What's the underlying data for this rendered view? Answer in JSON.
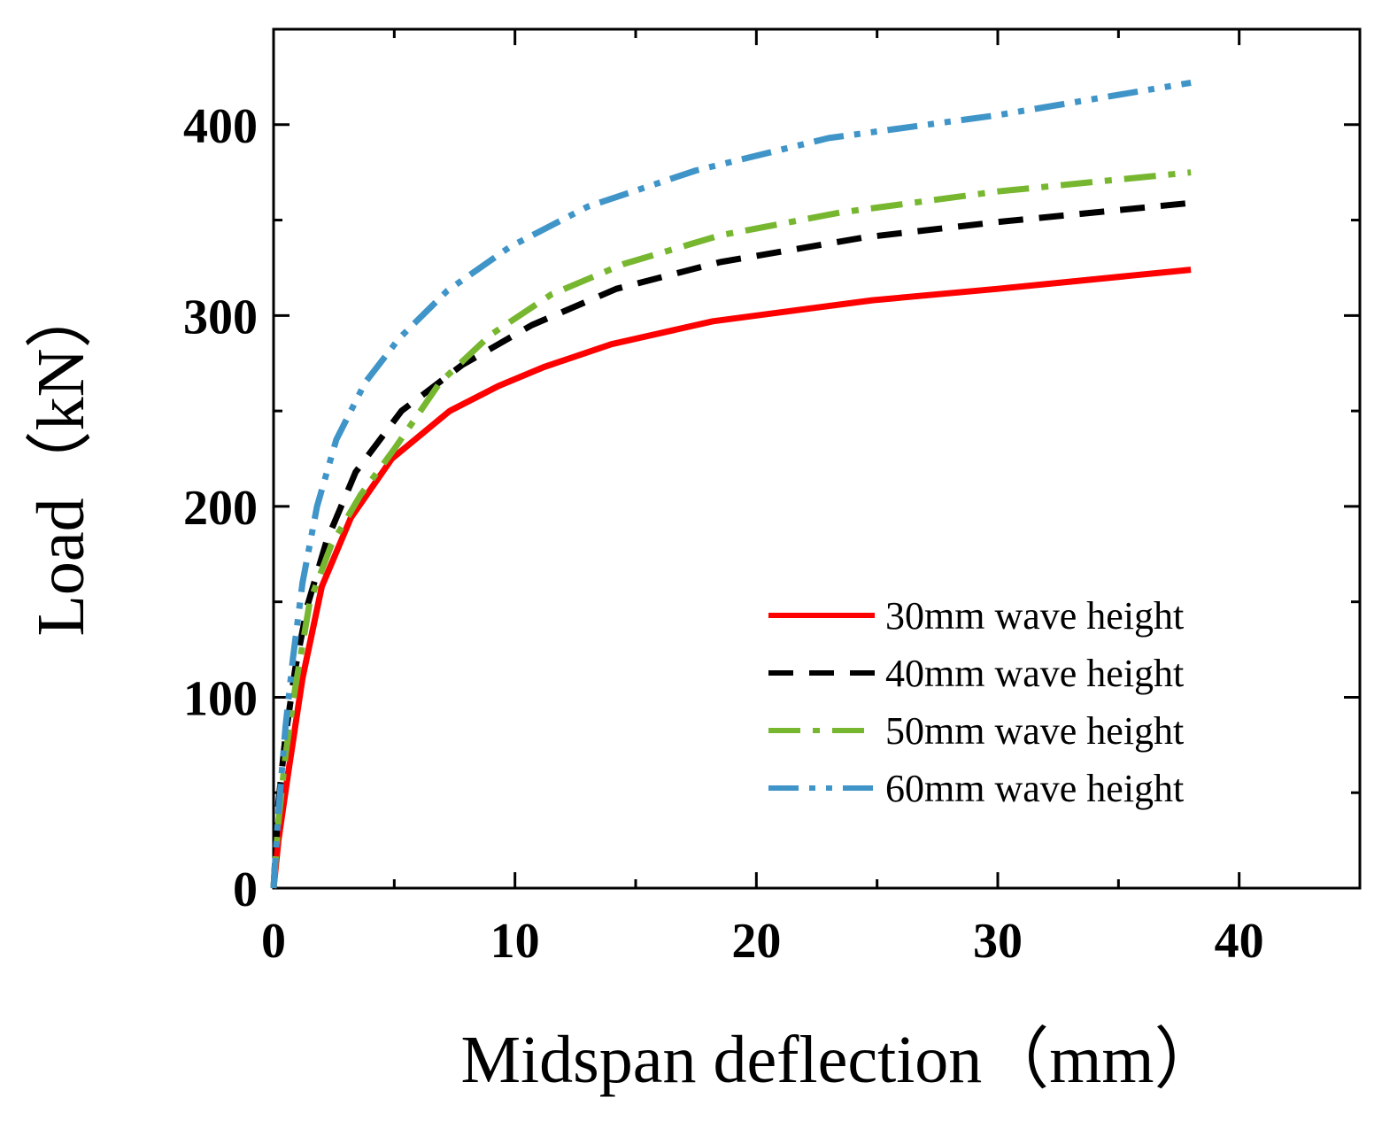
{
  "chart_data": {
    "type": "line",
    "title": "",
    "xlabel": "Midspan deflection（mm）",
    "ylabel": "Load（kN）",
    "xlim": [
      0,
      45
    ],
    "ylim": [
      0,
      450
    ],
    "xticks": [
      0,
      10,
      20,
      30,
      40
    ],
    "yticks": [
      0,
      100,
      200,
      300,
      400
    ],
    "xtick_labels": [
      "0",
      "10",
      "20",
      "30",
      "40"
    ],
    "ytick_labels": [
      "0",
      "100",
      "200",
      "300",
      "400"
    ],
    "grid": false,
    "legend_position": "lower-right",
    "series": [
      {
        "name": "30mm wave height",
        "color": "#ff0000",
        "style": "solid",
        "x": [
          0,
          0.2,
          0.6,
          1.2,
          2.0,
          3.2,
          4.9,
          7.3,
          9.3,
          11.2,
          14.0,
          18.2,
          24.8,
          30.0,
          38.0
        ],
        "y": [
          0,
          25,
          60,
          110,
          158,
          194,
          225,
          250,
          263,
          273,
          285,
          297,
          308,
          314,
          324
        ]
      },
      {
        "name": "40mm wave height",
        "color": "#000000",
        "style": "dashed",
        "x": [
          0,
          0.2,
          0.5,
          0.9,
          1.4,
          2.2,
          3.4,
          5.3,
          7.8,
          10.7,
          14.2,
          18.5,
          24.5,
          30.0,
          38.0
        ],
        "y": [
          0,
          45,
          80,
          115,
          148,
          182,
          218,
          250,
          274,
          295,
          314,
          328,
          341,
          349,
          359
        ]
      },
      {
        "name": "50mm wave height",
        "color": "#77b72f",
        "style": "dashdot",
        "x": [
          0,
          0.2,
          0.5,
          0.9,
          1.5,
          2.4,
          3.6,
          5.0,
          6.9,
          9.0,
          11.5,
          14.5,
          18.5,
          23.5,
          30.0,
          38.0
        ],
        "y": [
          0,
          35,
          70,
          105,
          150,
          180,
          206,
          230,
          265,
          290,
          311,
          327,
          342,
          354,
          365,
          375
        ]
      },
      {
        "name": "60mm wave height",
        "color": "#3f94c8",
        "style": "dashdotdot",
        "x": [
          0,
          0.2,
          0.5,
          0.8,
          1.2,
          1.8,
          2.6,
          3.8,
          5.2,
          7.2,
          9.8,
          13.0,
          17.5,
          23.0,
          30.0,
          38.0
        ],
        "y": [
          0,
          40,
          85,
          120,
          160,
          200,
          235,
          265,
          288,
          313,
          336,
          357,
          376,
          393,
          405,
          422
        ]
      }
    ]
  }
}
